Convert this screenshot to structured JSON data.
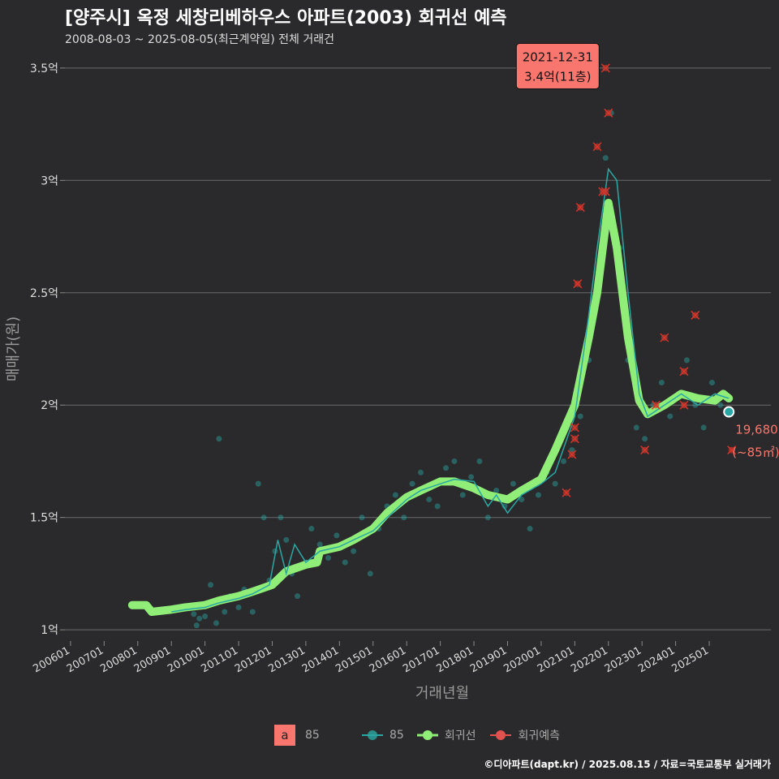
{
  "title": "[양주시] 옥정 세창리베하우스 아파트(2003) 회귀선 예측",
  "subtitle": "2008-08-03 ~ 2025-08-05(최근계약일) 전체 거래건",
  "caption": "©디아파트(dapt.kr) / 2025.08.15 / 자료=국토교통부 실거래가",
  "legend": {
    "fill_key_letter": "a",
    "fill_key_label": "85",
    "items": [
      {
        "label": "85",
        "color": "#2aa7a3"
      },
      {
        "label": "회귀선",
        "color": "#90ee78"
      },
      {
        "label": "회귀예측",
        "color": "#e0514f"
      }
    ]
  },
  "chart_data": {
    "type": "scatter",
    "xlabel": "거래년월",
    "ylabel": "매매가(원)",
    "xlim": [
      "2005-11",
      "2026-11"
    ],
    "ylim": [
      0.95,
      3.55
    ],
    "y_unit": "억",
    "x_ticks": [
      "200601",
      "200701",
      "200801",
      "200901",
      "201001",
      "201101",
      "201201",
      "201301",
      "201401",
      "201501",
      "201601",
      "201701",
      "201801",
      "201901",
      "202001",
      "202101",
      "202201",
      "202301",
      "202401",
      "202501"
    ],
    "y_ticks": [
      {
        "value": 1.0,
        "label": "1억"
      },
      {
        "value": 1.5,
        "label": "1.5억"
      },
      {
        "value": 2.0,
        "label": "2억"
      },
      {
        "value": 2.5,
        "label": "2.5억"
      },
      {
        "value": 3.0,
        "label": "3억"
      },
      {
        "value": 3.5,
        "label": "3.5억"
      }
    ],
    "grid": true,
    "legend_position": "bottom",
    "series": [
      {
        "name": "85",
        "role": "monthly average price line",
        "color": "#2aa7a3",
        "points": [
          [
            "2009-01",
            1.08
          ],
          [
            "2009-06",
            1.09
          ],
          [
            "2010-01",
            1.1
          ],
          [
            "2010-06",
            1.12
          ],
          [
            "2011-01",
            1.14
          ],
          [
            "2011-06",
            1.16
          ],
          [
            "2011-12",
            1.2
          ],
          [
            "2012-03",
            1.4
          ],
          [
            "2012-06",
            1.25
          ],
          [
            "2012-09",
            1.38
          ],
          [
            "2013-01",
            1.3
          ],
          [
            "2013-06",
            1.35
          ],
          [
            "2014-01",
            1.37
          ],
          [
            "2014-06",
            1.4
          ],
          [
            "2015-01",
            1.44
          ],
          [
            "2015-06",
            1.5
          ],
          [
            "2016-01",
            1.58
          ],
          [
            "2016-06",
            1.62
          ],
          [
            "2017-01",
            1.65
          ],
          [
            "2017-06",
            1.67
          ],
          [
            "2018-01",
            1.66
          ],
          [
            "2018-06",
            1.55
          ],
          [
            "2018-09",
            1.6
          ],
          [
            "2019-01",
            1.52
          ],
          [
            "2019-06",
            1.6
          ],
          [
            "2020-01",
            1.65
          ],
          [
            "2020-06",
            1.7
          ],
          [
            "2021-01",
            1.95
          ],
          [
            "2021-06",
            2.4
          ],
          [
            "2021-09",
            2.7
          ],
          [
            "2022-01",
            3.05
          ],
          [
            "2022-04",
            3.0
          ],
          [
            "2022-08",
            2.5
          ],
          [
            "2022-12",
            2.05
          ],
          [
            "2023-03",
            1.95
          ],
          [
            "2023-09",
            2.0
          ],
          [
            "2024-03",
            2.05
          ],
          [
            "2024-09",
            2.0
          ],
          [
            "2025-03",
            2.05
          ],
          [
            "2025-08",
            2.03
          ]
        ]
      },
      {
        "name": "회귀선",
        "role": "regression trend",
        "color": "#90ee78",
        "points": [
          [
            "2007-11",
            1.11
          ],
          [
            "2008-04",
            1.11
          ],
          [
            "2008-06",
            1.08
          ],
          [
            "2009-01",
            1.09
          ],
          [
            "2009-06",
            1.1
          ],
          [
            "2010-01",
            1.11
          ],
          [
            "2010-06",
            1.13
          ],
          [
            "2011-01",
            1.15
          ],
          [
            "2011-06",
            1.17
          ],
          [
            "2012-01",
            1.2
          ],
          [
            "2012-06",
            1.26
          ],
          [
            "2013-01",
            1.29
          ],
          [
            "2013-05",
            1.3
          ],
          [
            "2013-06",
            1.35
          ],
          [
            "2014-01",
            1.37
          ],
          [
            "2014-06",
            1.4
          ],
          [
            "2015-01",
            1.45
          ],
          [
            "2015-06",
            1.52
          ],
          [
            "2016-01",
            1.59
          ],
          [
            "2016-06",
            1.62
          ],
          [
            "2017-01",
            1.66
          ],
          [
            "2017-06",
            1.66
          ],
          [
            "2018-01",
            1.63
          ],
          [
            "2018-06",
            1.6
          ],
          [
            "2019-01",
            1.58
          ],
          [
            "2019-06",
            1.62
          ],
          [
            "2020-01",
            1.67
          ],
          [
            "2020-06",
            1.8
          ],
          [
            "2021-01",
            2.0
          ],
          [
            "2021-06",
            2.3
          ],
          [
            "2021-09",
            2.5
          ],
          [
            "2022-01",
            2.9
          ],
          [
            "2022-04",
            2.7
          ],
          [
            "2022-08",
            2.3
          ],
          [
            "2022-12",
            2.02
          ],
          [
            "2023-03",
            1.96
          ],
          [
            "2023-09",
            2.0
          ],
          [
            "2024-03",
            2.05
          ],
          [
            "2024-09",
            2.03
          ],
          [
            "2025-03",
            2.02
          ],
          [
            "2025-06",
            2.05
          ],
          [
            "2025-08",
            2.03
          ]
        ]
      }
    ],
    "scatter_points": [
      [
        "2009-09",
        1.07
      ],
      [
        "2009-10",
        1.02
      ],
      [
        "2009-11",
        1.05
      ],
      [
        "2010-01",
        1.06
      ],
      [
        "2010-03",
        1.2
      ],
      [
        "2010-05",
        1.03
      ],
      [
        "2010-06",
        1.85
      ],
      [
        "2010-08",
        1.08
      ],
      [
        "2010-10",
        1.15
      ],
      [
        "2011-01",
        1.1
      ],
      [
        "2011-03",
        1.18
      ],
      [
        "2011-06",
        1.08
      ],
      [
        "2011-08",
        1.65
      ],
      [
        "2011-10",
        1.5
      ],
      [
        "2011-12",
        1.22
      ],
      [
        "2012-02",
        1.35
      ],
      [
        "2012-04",
        1.5
      ],
      [
        "2012-06",
        1.4
      ],
      [
        "2012-08",
        1.25
      ],
      [
        "2012-10",
        1.15
      ],
      [
        "2013-01",
        1.3
      ],
      [
        "2013-03",
        1.45
      ],
      [
        "2013-06",
        1.38
      ],
      [
        "2013-09",
        1.32
      ],
      [
        "2013-12",
        1.42
      ],
      [
        "2014-03",
        1.3
      ],
      [
        "2014-06",
        1.35
      ],
      [
        "2014-09",
        1.5
      ],
      [
        "2014-12",
        1.25
      ],
      [
        "2015-03",
        1.45
      ],
      [
        "2015-06",
        1.55
      ],
      [
        "2015-09",
        1.6
      ],
      [
        "2015-12",
        1.5
      ],
      [
        "2016-03",
        1.65
      ],
      [
        "2016-06",
        1.7
      ],
      [
        "2016-09",
        1.58
      ],
      [
        "2016-12",
        1.55
      ],
      [
        "2017-03",
        1.72
      ],
      [
        "2017-06",
        1.75
      ],
      [
        "2017-09",
        1.6
      ],
      [
        "2017-12",
        1.68
      ],
      [
        "2018-03",
        1.75
      ],
      [
        "2018-06",
        1.5
      ],
      [
        "2018-09",
        1.62
      ],
      [
        "2018-12",
        1.55
      ],
      [
        "2019-03",
        1.65
      ],
      [
        "2019-06",
        1.58
      ],
      [
        "2019-09",
        1.45
      ],
      [
        "2019-12",
        1.6
      ],
      [
        "2020-03",
        1.7
      ],
      [
        "2020-06",
        1.65
      ],
      [
        "2020-09",
        1.75
      ],
      [
        "2020-12",
        1.8
      ],
      [
        "2021-03",
        1.95
      ],
      [
        "2021-06",
        2.2
      ],
      [
        "2021-09",
        2.5
      ],
      [
        "2021-12",
        3.1
      ],
      [
        "2022-02",
        3.3
      ],
      [
        "2022-05",
        2.7
      ],
      [
        "2022-08",
        2.2
      ],
      [
        "2022-11",
        1.9
      ],
      [
        "2023-02",
        1.85
      ],
      [
        "2023-05",
        2.0
      ],
      [
        "2023-08",
        2.1
      ],
      [
        "2023-11",
        1.95
      ],
      [
        "2024-02",
        2.05
      ],
      [
        "2024-05",
        2.2
      ],
      [
        "2024-08",
        2.0
      ],
      [
        "2024-11",
        1.9
      ],
      [
        "2025-02",
        2.1
      ],
      [
        "2025-05",
        2.0
      ],
      [
        "2025-08",
        1.97
      ]
    ],
    "prediction_points": [
      [
        "2020-10",
        1.61
      ],
      [
        "2020-12",
        1.78
      ],
      [
        "2021-01",
        1.9
      ],
      [
        "2021-01",
        1.85
      ],
      [
        "2021-02",
        2.54
      ],
      [
        "2021-03",
        2.88
      ],
      [
        "2021-09",
        3.15
      ],
      [
        "2021-12",
        3.5
      ],
      [
        "2022-01",
        3.3
      ],
      [
        "2021-12",
        2.95
      ],
      [
        "2021-11",
        2.95
      ],
      [
        "2023-02",
        1.8
      ],
      [
        "2023-06",
        2.0
      ],
      [
        "2023-09",
        2.3
      ],
      [
        "2024-04",
        2.15
      ],
      [
        "2024-04",
        2.0
      ],
      [
        "2024-08",
        2.4
      ],
      [
        "2025-09",
        1.8
      ]
    ],
    "annotations": [
      {
        "date": "2021-12-31",
        "text_line1": "2021-12-31",
        "text_line2": "3.4억(11층)",
        "x": "2021-12",
        "y": 3.4
      },
      {
        "text_line1": "19,680",
        "text_line2": "(~85㎡)",
        "x": "2025-08",
        "y": 1.97
      }
    ]
  }
}
